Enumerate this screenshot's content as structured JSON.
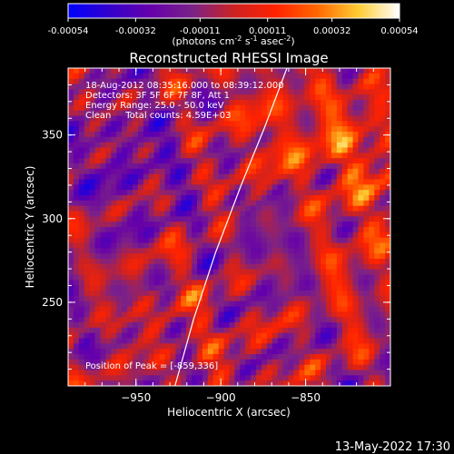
{
  "colorbar": {
    "ticks": [
      "-0.00054",
      "-0.00032",
      "-0.00011",
      "0.00011",
      "0.00032",
      "0.00054"
    ],
    "values": [
      -0.00054,
      -0.00032,
      -0.00011,
      0.00011,
      0.00032,
      0.00054
    ],
    "range": [
      -0.00054,
      0.00054
    ],
    "unit_parts": [
      "(photons cm",
      "-2",
      " s",
      "-1",
      " asec",
      "-2",
      ")"
    ],
    "stops": [
      "#0000ff",
      "#3300cc",
      "#6600aa",
      "#7b2288",
      "#cc2222",
      "#ff2200",
      "#ff6600",
      "#ffcc33",
      "#ffffff"
    ]
  },
  "chart_data": {
    "type": "heatmap",
    "title": "Reconstructed RHESSI Image",
    "xlabel": "Heliocentric X (arcsec)",
    "ylabel": "Heliocentric Y (arcsec)",
    "xlim": [
      -990,
      -800
    ],
    "ylim": [
      200,
      390
    ],
    "xticks": [
      -950,
      -900,
      -850
    ],
    "yticks": [
      250,
      300,
      350
    ],
    "xtick_labels": [
      "−950",
      "−900",
      "−850"
    ],
    "ytick_labels": [
      "250",
      "300",
      "350"
    ],
    "limb_points": [
      [
        -927,
        200
      ],
      [
        -916,
        240
      ],
      [
        -903,
        280
      ],
      [
        -888,
        320
      ],
      [
        -874,
        355
      ],
      [
        -861,
        390
      ]
    ],
    "peak": [
      -859,
      336
    ],
    "info_lines": [
      "18-Aug-2012 08:35:16.000 to 08:39:12.000",
      "Detectors: 3F 5F 6F 7F 8F, Att 1",
      "Energy Range: 25.0 - 50.0 keV",
      "Clean     Total counts: 4.59E+03"
    ],
    "peak_label": "Position of Peak = [-859,336]"
  },
  "footer": {
    "timestamp": "13-May-2022 17:30"
  }
}
